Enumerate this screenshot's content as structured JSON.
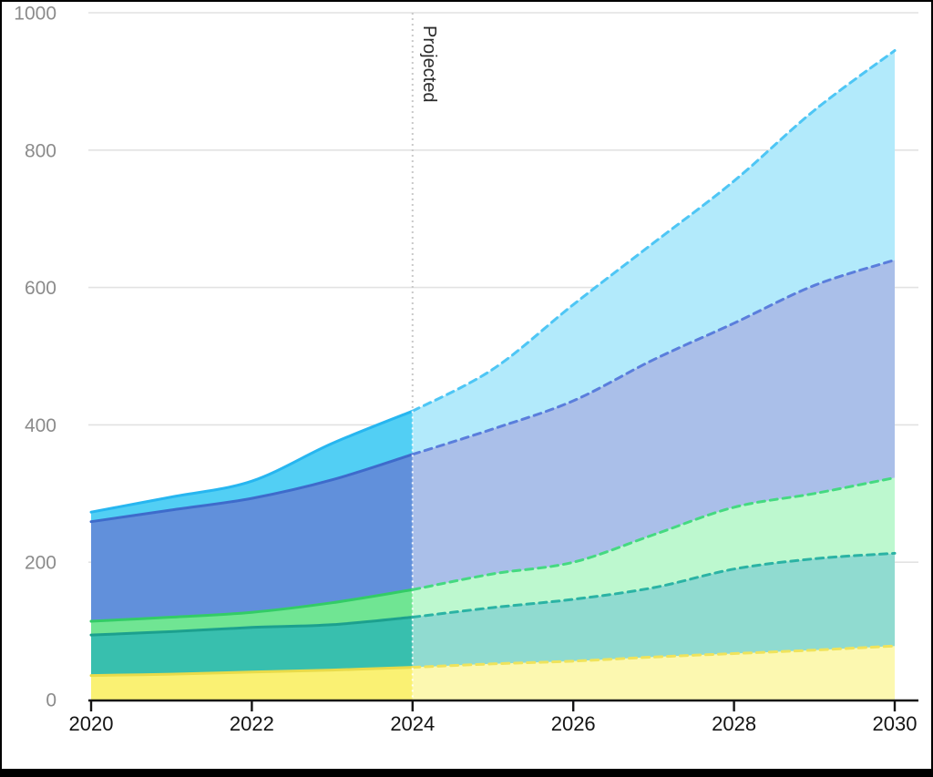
{
  "chart_data": {
    "type": "area",
    "stacked": true,
    "title": "",
    "x": [
      2020,
      2021,
      2022,
      2023,
      2024,
      2025,
      2026,
      2027,
      2028,
      2029,
      2030
    ],
    "x_tick_labels": [
      "2020",
      "2022",
      "2024",
      "2026",
      "2028",
      "2030"
    ],
    "y_tick_labels": [
      "0",
      "200",
      "400",
      "600",
      "800",
      "1000"
    ],
    "ylim": [
      0,
      1000
    ],
    "xlabel": "",
    "ylabel": "",
    "grid": true,
    "legend_position": "none",
    "projection_start_x": 2024,
    "annotation": {
      "text": "Projected",
      "at_x": 2024
    },
    "series": [
      {
        "name": "yellow",
        "values": [
          35,
          37,
          40,
          43,
          47,
          52,
          56,
          62,
          67,
          72,
          78
        ],
        "fill_historical": "#FAF173",
        "fill_projected": "#FCF8B0",
        "line_historical": "#E9DB4A",
        "line_projected": "#EFE35C"
      },
      {
        "name": "teal",
        "values": [
          59,
          62,
          65,
          66,
          73,
          82,
          90,
          101,
          123,
          133,
          135
        ],
        "fill_historical": "#38BFAE",
        "fill_projected": "#90DBD0",
        "line_historical": "#1CA08E",
        "line_projected": "#2BB3A4"
      },
      {
        "name": "green",
        "values": [
          20,
          21,
          22,
          32,
          40,
          49,
          54,
          77,
          90,
          95,
          110
        ],
        "fill_historical": "#70E593",
        "fill_projected": "#BDF8CF",
        "line_historical": "#33CC66",
        "line_projected": "#45D981"
      },
      {
        "name": "blue",
        "values": [
          145,
          156,
          166,
          179,
          197,
          211,
          235,
          255,
          268,
          303,
          317
        ],
        "fill_historical": "#6190DB",
        "fill_projected": "#AABFE9",
        "line_historical": "#3E6BCB",
        "line_projected": "#5A7EDC"
      },
      {
        "name": "cyan",
        "values": [
          14,
          19,
          25,
          53,
          63,
          87,
          140,
          170,
          207,
          255,
          305
        ],
        "fill_historical": "#52CFF4",
        "fill_projected": "#B2EAFB",
        "line_historical": "#27B6F0",
        "line_projected": "#4EC6F5"
      }
    ]
  },
  "colors": {
    "background": "#ffffff",
    "frame_border": "#000000",
    "gridline": "#e2e2e2",
    "axis_line": "#141414",
    "y_tick_text": "#8b8b8b",
    "x_tick_text": "#141414",
    "divider_upper": "#c9c9c9",
    "divider_lower": "#ffffff",
    "annotation_text": "#2b2b2b"
  }
}
